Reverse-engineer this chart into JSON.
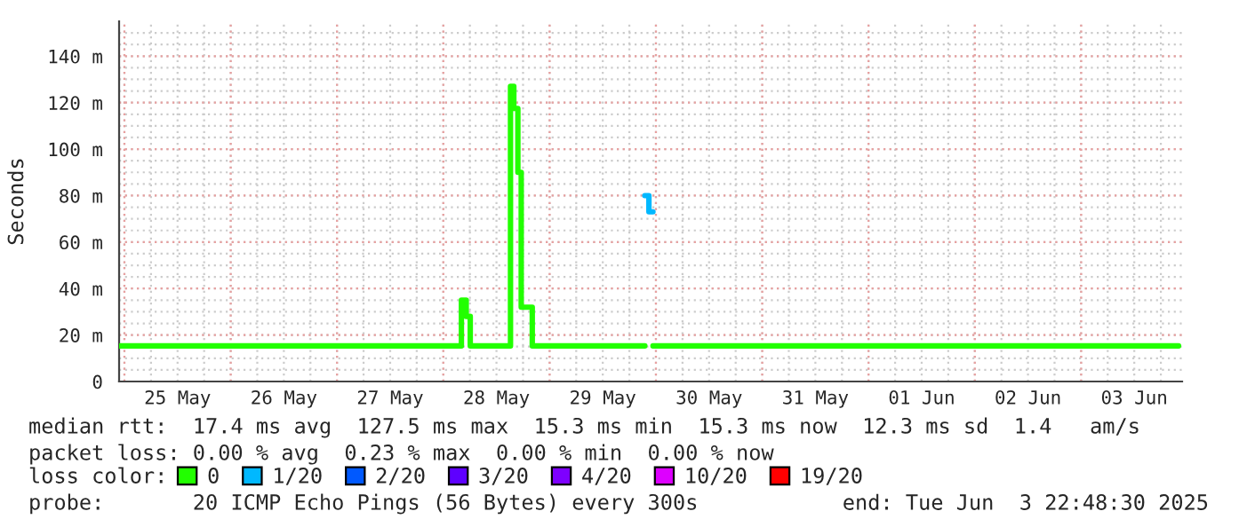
{
  "chart_data": {
    "type": "step",
    "ylabel": "Seconds",
    "legend_title": "loss color:",
    "xlim": [
      "2025-05-24T22:48",
      "2025-06-03T22:48"
    ],
    "xticks": [
      {
        "value": "2025-05-25T00:00",
        "label": null
      },
      {
        "value": "2025-05-25T12:00",
        "label": "25 May"
      },
      {
        "value": "2025-05-26T00:00",
        "label": null
      },
      {
        "value": "2025-05-26T12:00",
        "label": "26 May"
      },
      {
        "value": "2025-05-27T00:00",
        "label": null
      },
      {
        "value": "2025-05-27T12:00",
        "label": "27 May"
      },
      {
        "value": "2025-05-28T00:00",
        "label": null
      },
      {
        "value": "2025-05-28T12:00",
        "label": "28 May"
      },
      {
        "value": "2025-05-29T00:00",
        "label": null
      },
      {
        "value": "2025-05-29T12:00",
        "label": "29 May"
      },
      {
        "value": "2025-05-30T00:00",
        "label": null
      },
      {
        "value": "2025-05-30T12:00",
        "label": "30 May"
      },
      {
        "value": "2025-05-31T00:00",
        "label": null
      },
      {
        "value": "2025-05-31T12:00",
        "label": "31 May"
      },
      {
        "value": "2025-06-01T00:00",
        "label": null
      },
      {
        "value": "2025-06-01T12:00",
        "label": "01 Jun"
      },
      {
        "value": "2025-06-02T00:00",
        "label": null
      },
      {
        "value": "2025-06-02T12:00",
        "label": "02 Jun"
      },
      {
        "value": "2025-06-03T00:00",
        "label": null
      },
      {
        "value": "2025-06-03T12:00",
        "label": "03 Jun"
      }
    ],
    "ylim": [
      0,
      155
    ],
    "yticks": [
      0,
      {
        "value": 20,
        "label": "20 m"
      },
      {
        "value": 40,
        "label": "40 m"
      },
      {
        "value": 60,
        "label": "60 m"
      },
      {
        "value": 80,
        "label": "80 m"
      },
      {
        "value": 100,
        "label": "100 m"
      },
      {
        "value": 120,
        "label": "120 m"
      },
      {
        "value": 140,
        "label": "140 m"
      }
    ],
    "grid": true,
    "legend": "bottom",
    "series": [
      {
        "name": "0",
        "color": "#22ff00",
        "x": [
          "2025-05-24T23:00",
          "2025-05-28T04:05",
          "2025-05-28T05:10",
          "2025-05-28T06:05",
          "2025-05-28T15:10",
          "2025-05-28T15:55",
          "2025-05-28T16:50",
          "2025-05-28T17:35",
          "2025-05-28T20:05",
          "2025-05-29T21:30",
          "2025-05-29T23:20",
          "2025-06-03T22:00"
        ],
        "values": [
          15.3,
          35,
          28,
          15.3,
          127,
          117.5,
          90,
          32,
          15.3,
          null,
          15.3,
          15.3
        ]
      },
      {
        "name": "1/20",
        "color": "#00b8ff",
        "x": [
          "2025-05-29T21:30",
          "2025-05-29T22:25",
          "2025-05-29T23:20"
        ],
        "values": [
          80,
          73,
          73
        ]
      },
      {
        "name": "2/20",
        "color": "#0059ff"
      },
      {
        "name": "3/20",
        "color": "#5e00ff"
      },
      {
        "name": "4/20",
        "color": "#7e00ff"
      },
      {
        "name": "10/20",
        "color": "#dd00ff"
      },
      {
        "name": "19/20",
        "color": "#ff0000"
      }
    ],
    "annotations": [
      "median rtt:  17.4 ms avg  127.5 ms max  15.3 ms min  15.3 ms now  12.3 ms sd  1.4   am/s",
      "packet loss: 0.00 % avg  0.23 % max  0.00 % min  0.00 % now",
      "probe:       20 ICMP Echo Pings (56 Bytes) every 300s",
      "end: Tue Jun  3 22:48:30 2025"
    ]
  }
}
